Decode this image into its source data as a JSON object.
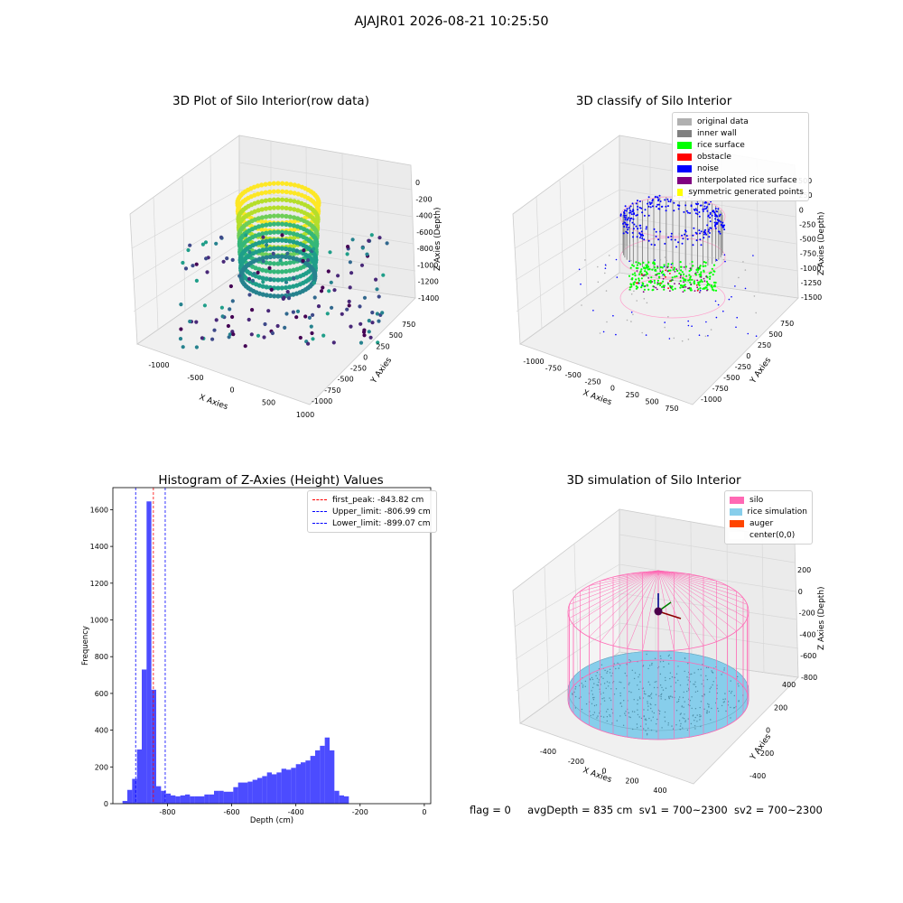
{
  "suptitle": "AJAJR01 2026-08-21 10:25:50",
  "panels": {
    "raw": {
      "title": "3D Plot of Silo Interior(row data)",
      "xlabel": "X Axies",
      "ylabel": "Y Axies",
      "zlabel": "Z Axies (Depth)",
      "xticks": [
        "-1000",
        "-500",
        "0",
        "500",
        "1000"
      ],
      "yticks": [
        "-1000",
        "-750",
        "-500",
        "-250",
        "0",
        "250",
        "500",
        "750"
      ],
      "zticks": [
        "0",
        "-200",
        "-400",
        "-600",
        "-800",
        "-1000",
        "-1200",
        "-1400"
      ]
    },
    "classify": {
      "title": "3D classify of Silo Interior",
      "xlabel": "X Axies",
      "ylabel": "Y Axies",
      "zlabel": "Z Axies (Depth)",
      "xticks": [
        "-1000",
        "-750",
        "-500",
        "-250",
        "0",
        "250",
        "500",
        "750"
      ],
      "yticks": [
        "-1000",
        "-750",
        "-500",
        "-250",
        "0",
        "250",
        "500",
        "750"
      ],
      "zticks": [
        "500",
        "250",
        "0",
        "-250",
        "-500",
        "-750",
        "-1000",
        "-1250",
        "-1500"
      ],
      "legend": [
        {
          "label": "original data",
          "color": "#b0b0b0"
        },
        {
          "label": "inner wall",
          "color": "#808080"
        },
        {
          "label": "rice surface",
          "color": "#00ff00"
        },
        {
          "label": "obstacle",
          "color": "#ff0000"
        },
        {
          "label": "noise",
          "color": "#0000ff"
        },
        {
          "label": "interpolated rice surface",
          "color": "#800080"
        },
        {
          "label": "symmetric generated points",
          "color": "#ffff00"
        }
      ]
    },
    "simulation": {
      "title": "3D simulation of Silo Interior",
      "xlabel": "X Axies",
      "ylabel": "Y Axies",
      "zlabel": "Z Axies (Depth)",
      "xticks": [
        "-400",
        "-200",
        "0",
        "200",
        "400"
      ],
      "yticks": [
        "-400",
        "-200",
        "0",
        "200",
        "400"
      ],
      "zticks": [
        "200",
        "0",
        "-200",
        "-400",
        "-600",
        "-800"
      ],
      "legend": [
        {
          "label": "silo",
          "color": "#ff69b4"
        },
        {
          "label": "rice simulation",
          "color": "#87ceeb"
        },
        {
          "label": "auger",
          "color": "#ff4500"
        },
        {
          "label": "center(0,0)",
          "color": "#ffffff"
        }
      ]
    }
  },
  "chart_data": [
    {
      "type": "bar",
      "title": "Histogram of Z-Axies (Height) Values",
      "xlabel": "Depth (cm)",
      "ylabel": "Frequency",
      "xlim": [
        -970,
        20
      ],
      "ylim": [
        0,
        1720
      ],
      "xticks": [
        -800,
        -600,
        -400,
        -200,
        0
      ],
      "yticks": [
        0,
        200,
        400,
        600,
        800,
        1000,
        1200,
        1400,
        1600
      ],
      "bin_start": -940,
      "bin_width": 15,
      "values": [
        15,
        75,
        135,
        295,
        730,
        1645,
        620,
        95,
        70,
        55,
        45,
        40,
        45,
        50,
        40,
        40,
        40,
        50,
        50,
        70,
        70,
        65,
        65,
        90,
        115,
        115,
        120,
        130,
        140,
        150,
        170,
        160,
        170,
        190,
        185,
        195,
        215,
        225,
        235,
        260,
        290,
        315,
        360,
        290,
        70,
        45,
        40
      ],
      "bar_color": "#0000ff",
      "lines": [
        {
          "label": "first_peak: -843.82 cm",
          "x": -843.82,
          "color": "#ff0000"
        },
        {
          "label": "Upper_limit: -806.99 cm",
          "x": -806.99,
          "color": "#0000ff"
        },
        {
          "label": "Lower_limit: -899.07 cm",
          "x": -899.07,
          "color": "#0000ff"
        }
      ],
      "legend_position": "top-right"
    }
  ],
  "footer": {
    "flag": "flag = 0",
    "avg": "avgDepth = 835 cm",
    "sv1": "sv1 = 700~2300",
    "sv2": "sv2 = 700~2300"
  }
}
